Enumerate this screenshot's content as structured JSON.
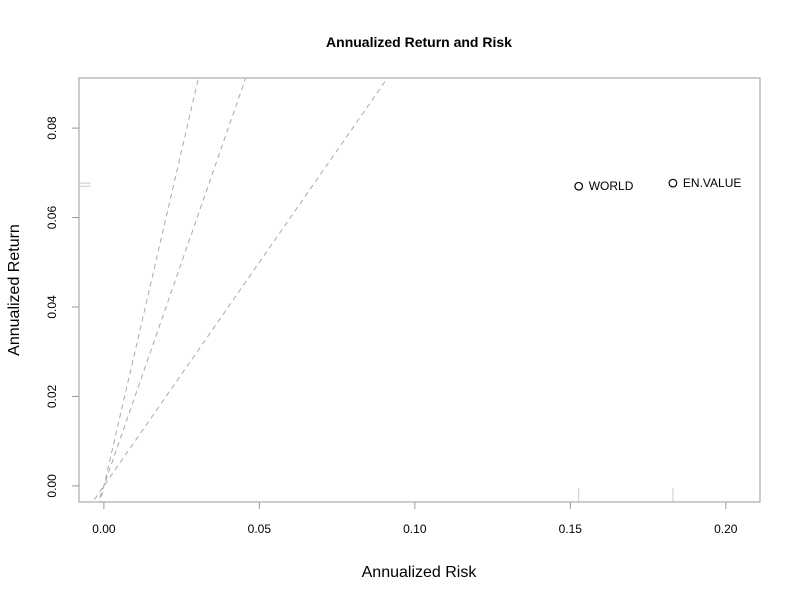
{
  "chart_data": {
    "type": "scatter",
    "title": "Annualized Return and Risk",
    "xlabel": "Annualized Risk",
    "ylabel": "Annualized Return",
    "xlim": [
      -0.008,
      0.211
    ],
    "ylim": [
      -0.0036,
      0.0912
    ],
    "x_ticks": [
      "0.00",
      "0.05",
      "0.10",
      "0.15",
      "0.20"
    ],
    "y_ticks": [
      "0.00",
      "0.02",
      "0.04",
      "0.06",
      "0.08"
    ],
    "grid": false,
    "points": [
      {
        "label": "WORLD",
        "x": 0.1527,
        "y": 0.067
      },
      {
        "label": "EN.VALUE",
        "x": 0.183,
        "y": 0.0677
      }
    ],
    "reference_lines_slopes": [
      1,
      2,
      3
    ],
    "reference_line_style": "dashed",
    "rug": true,
    "colors": {
      "points": "#000000",
      "reference_lines": "#aaaaaa",
      "axes": "#999999"
    }
  }
}
